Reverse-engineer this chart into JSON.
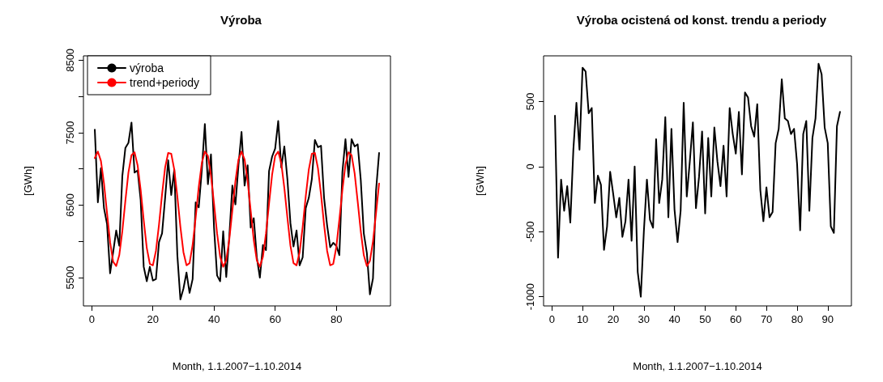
{
  "chart_data": [
    {
      "type": "line",
      "title": "Výroba",
      "xlabel": "Month, 1.1.2007−1.10.2014",
      "ylabel": "[GWh]",
      "x": [
        1,
        2,
        3,
        4,
        5,
        6,
        7,
        8,
        9,
        10,
        11,
        12,
        13,
        14,
        15,
        16,
        17,
        18,
        19,
        20,
        21,
        22,
        23,
        24,
        25,
        26,
        27,
        28,
        29,
        30,
        31,
        32,
        33,
        34,
        35,
        36,
        37,
        38,
        39,
        40,
        41,
        42,
        43,
        44,
        45,
        46,
        47,
        48,
        49,
        50,
        51,
        52,
        53,
        54,
        55,
        56,
        57,
        58,
        59,
        60,
        61,
        62,
        63,
        64,
        65,
        66,
        67,
        68,
        69,
        70,
        71,
        72,
        73,
        74,
        75,
        76,
        77,
        78,
        79,
        80,
        81,
        82,
        83,
        84,
        85,
        86,
        87,
        88,
        89,
        90,
        91,
        92,
        93,
        94
      ],
      "series": [
        {
          "name": "výroba",
          "color": "#000000",
          "values": [
            7540,
            6540,
            7010,
            6460,
            6240,
            5560,
            5850,
            6150,
            5940,
            6900,
            7290,
            7360,
            7640,
            6950,
            6980,
            6570,
            5650,
            5450,
            5650,
            5460,
            5480,
            5990,
            6110,
            6600,
            7120,
            6640,
            6990,
            5810,
            5200,
            5350,
            5570,
            5290,
            5480,
            6540,
            6470,
            6980,
            7620,
            6790,
            7200,
            6190,
            5530,
            5450,
            6140,
            5510,
            6070,
            6770,
            6510,
            7050,
            7510,
            6770,
            7050,
            6190,
            6320,
            5780,
            5500,
            5950,
            5880,
            6970,
            7170,
            7280,
            7660,
            7020,
            7310,
            6860,
            6250,
            5930,
            6150,
            5670,
            5780,
            6460,
            6600,
            6860,
            7400,
            7300,
            7320,
            6600,
            6220,
            5920,
            5980,
            5940,
            5810,
            6960,
            7410,
            6890,
            7410,
            7310,
            7340,
            6850,
            6110,
            5840,
            5270,
            5490,
            6700,
            7220
          ]
        },
        {
          "name": "trend+periody",
          "color": "#ff0000",
          "values": [
            7150,
            7240,
            7110,
            6800,
            6390,
            5990,
            5720,
            5660,
            5810,
            6140,
            6560,
            6950,
            7190,
            7230,
            7050,
            6710,
            6290,
            5910,
            5690,
            5670,
            5870,
            6230,
            6650,
            7020,
            7220,
            7210,
            6990,
            6620,
            6200,
            5850,
            5670,
            5700,
            5950,
            6330,
            6750,
            7080,
            7240,
            7180,
            6910,
            6520,
            6110,
            5790,
            5650,
            5740,
            6030,
            6430,
            6830,
            7130,
            7240,
            7130,
            6830,
            6420,
            6020,
            5740,
            5650,
            5790,
            6110,
            6520,
            6920,
            7180,
            7240,
            7080,
            6740,
            6330,
            5940,
            5700,
            5670,
            5850,
            6200,
            6620,
            6990,
            7210,
            7220,
            7010,
            6650,
            6230,
            5870,
            5670,
            5690,
            5920,
            6300,
            6710,
            7060,
            7230,
            7190,
            6940,
            6550,
            6140,
            5810,
            5660,
            5730,
            6000,
            6390,
            6800
          ]
        }
      ],
      "xlim": [
        -2.72,
        97.72
      ],
      "xticks": [
        0,
        20,
        40,
        60,
        80
      ],
      "ylim": [
        5110,
        8560
      ],
      "yticks": [
        5500,
        {
          "value": 6000,
          "label": null
        },
        6500,
        {
          "value": 7000,
          "label": null
        },
        7500,
        {
          "value": 8000,
          "label": null
        },
        8500
      ],
      "grid": false,
      "legend": "top left",
      "marker": "none",
      "line_style": "solid"
    },
    {
      "type": "line",
      "title": "Výroba ocistená od konst. trendu a periody",
      "xlabel": "Month, 1.1.2007−1.10.2014",
      "ylabel": "[GWh]",
      "x": [
        1,
        2,
        3,
        4,
        5,
        6,
        7,
        8,
        9,
        10,
        11,
        12,
        13,
        14,
        15,
        16,
        17,
        18,
        19,
        20,
        21,
        22,
        23,
        24,
        25,
        26,
        27,
        28,
        29,
        30,
        31,
        32,
        33,
        34,
        35,
        36,
        37,
        38,
        39,
        40,
        41,
        42,
        43,
        44,
        45,
        46,
        47,
        48,
        49,
        50,
        51,
        52,
        53,
        54,
        55,
        56,
        57,
        58,
        59,
        60,
        61,
        62,
        63,
        64,
        65,
        66,
        67,
        68,
        69,
        70,
        71,
        72,
        73,
        74,
        75,
        76,
        77,
        78,
        79,
        80,
        81,
        82,
        83,
        84,
        85,
        86,
        87,
        88,
        89,
        90,
        91,
        92,
        93,
        94
      ],
      "series": [
        {
          "color": "#000000",
          "values": [
            390,
            -700,
            -100,
            -340,
            -150,
            -430,
            130,
            490,
            130,
            760,
            730,
            410,
            450,
            -280,
            -70,
            -140,
            -640,
            -460,
            -40,
            -210,
            -390,
            -240,
            -540,
            -420,
            -100,
            -570,
            0,
            -810,
            -1000,
            -500,
            -100,
            -410,
            -470,
            210,
            -280,
            -100,
            380,
            -390,
            290,
            -330,
            -580,
            -340,
            490,
            -230,
            40,
            340,
            -320,
            -80,
            270,
            -360,
            220,
            -230,
            300,
            40,
            -150,
            160,
            -230,
            450,
            250,
            100,
            420,
            -60,
            570,
            530,
            310,
            230,
            480,
            -180,
            -420,
            -160,
            -390,
            -350,
            180,
            290,
            670,
            370,
            350,
            250,
            290,
            20,
            -490,
            250,
            350,
            -340,
            220,
            370,
            790,
            710,
            300,
            180,
            -460,
            -510,
            310,
            420
          ]
        }
      ],
      "xlim": [
        -2.72,
        97.72
      ],
      "xticks": [
        0,
        10,
        20,
        30,
        40,
        50,
        60,
        70,
        80,
        90
      ],
      "ylim": [
        -1071,
        851
      ],
      "yticks": [
        -1000,
        -500,
        0,
        500
      ],
      "grid": false,
      "legend": false,
      "marker": "none",
      "line_style": "solid"
    }
  ]
}
